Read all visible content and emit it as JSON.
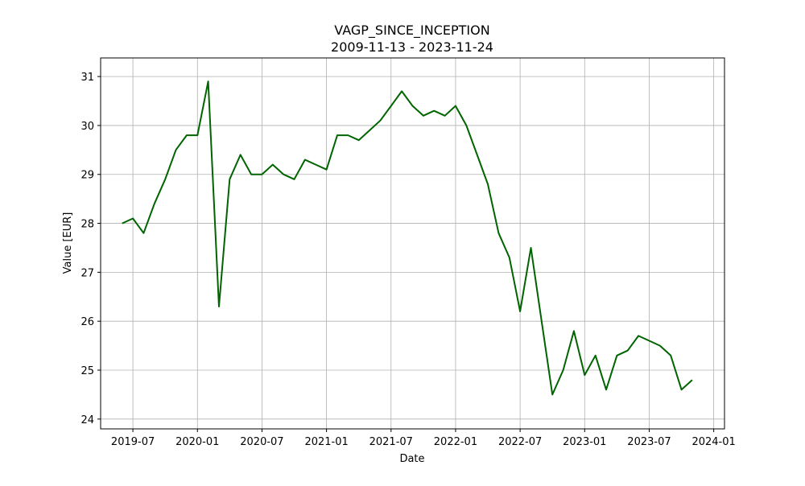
{
  "chart_data": {
    "type": "line",
    "title": "VAGP_SINCE_INCEPTION",
    "subtitle": "2009-11-13 - 2023-11-24",
    "x_label": "Date",
    "y_label": "Value [EUR]",
    "x": [
      "2019-06",
      "2019-07",
      "2019-08",
      "2019-09",
      "2019-10",
      "2019-11",
      "2019-12",
      "2020-01",
      "2020-02",
      "2020-03",
      "2020-04",
      "2020-05",
      "2020-06",
      "2020-07",
      "2020-08",
      "2020-09",
      "2020-10",
      "2020-11",
      "2020-12",
      "2021-01",
      "2021-02",
      "2021-03",
      "2021-04",
      "2021-05",
      "2021-06",
      "2021-07",
      "2021-08",
      "2021-09",
      "2021-10",
      "2021-11",
      "2021-12",
      "2022-01",
      "2022-02",
      "2022-03",
      "2022-04",
      "2022-05",
      "2022-06",
      "2022-07",
      "2022-08",
      "2022-09",
      "2022-10",
      "2022-11",
      "2022-12",
      "2023-01",
      "2023-02",
      "2023-03",
      "2023-04",
      "2023-05",
      "2023-06",
      "2023-07",
      "2023-08",
      "2023-09",
      "2023-10",
      "2023-11"
    ],
    "series": [
      {
        "color": "#006400",
        "values": [
          28.0,
          28.1,
          27.8,
          28.4,
          28.9,
          29.5,
          29.8,
          29.8,
          30.9,
          26.3,
          28.9,
          29.4,
          29.0,
          29.0,
          29.2,
          29.0,
          28.9,
          29.3,
          29.2,
          29.1,
          29.8,
          29.8,
          29.7,
          29.9,
          30.1,
          30.4,
          30.7,
          30.4,
          30.2,
          30.3,
          30.2,
          30.4,
          30.0,
          29.4,
          28.8,
          27.8,
          27.3,
          26.2,
          27.5,
          26.0,
          24.5,
          25.0,
          25.8,
          24.9,
          25.3,
          24.6,
          25.3,
          25.4,
          25.7,
          25.6,
          25.5,
          25.3,
          24.6,
          24.8
        ]
      }
    ],
    "xlim": [
      "2019-04",
      "2024-02"
    ],
    "xticks": [
      "2019-07",
      "2020-01",
      "2020-07",
      "2021-01",
      "2021-07",
      "2022-01",
      "2022-07",
      "2023-01",
      "2023-07",
      "2024-01"
    ],
    "ylim": [
      23.8,
      31.38
    ],
    "yticks": [
      24,
      25,
      26,
      27,
      28,
      29,
      30,
      31
    ],
    "grid": true
  }
}
